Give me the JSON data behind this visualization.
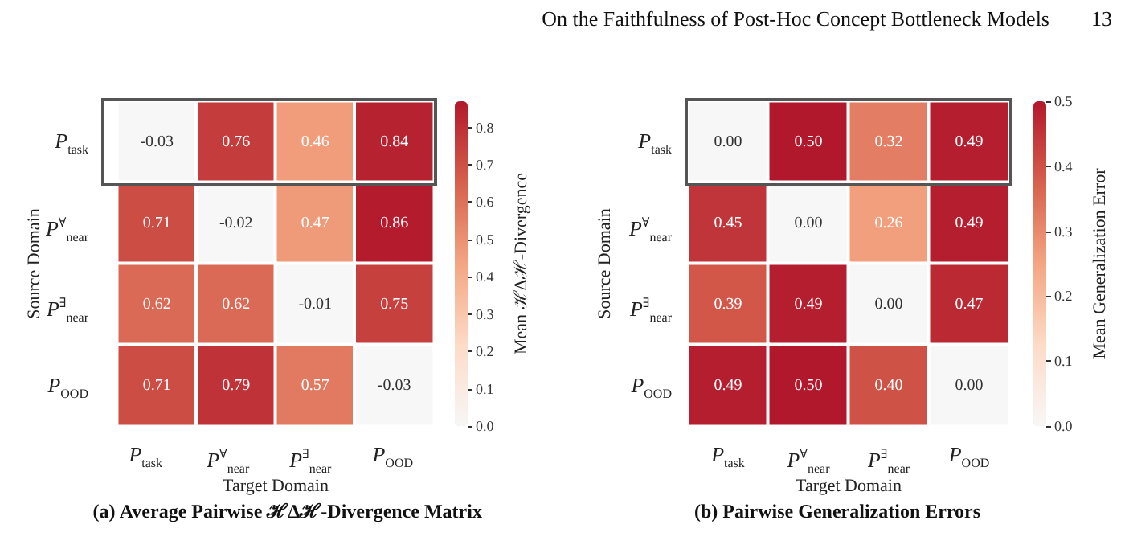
{
  "chart_data": [
    {
      "type": "heatmap",
      "title": "(a) Average Pairwise ℋΔℋ-Divergence Matrix",
      "xlabel": "Target Domain",
      "ylabel": "Source Domain",
      "clabel": "Mean ℋΔℋ-Divergence",
      "annotations": [
        "On the Faithfulness of Post-Hoc Concept Bottleneck Models",
        "13"
      ],
      "categories": [
        "P$_{task}$",
        "P$^{∀}$$_{near}$",
        "P$^{∃}$$_{near}$",
        "P$_{OOD}$"
      ],
      "y_categories": [
        "P$_{task}$",
        "P$^{∀}$$_{near}$",
        "P$^{∃}$$_{near}$",
        "P$_{OOD}$"
      ],
      "cells": [
        [
          -0.03,
          0.76,
          0.46,
          0.84
        ],
        [
          0.71,
          -0.02,
          0.47,
          0.86
        ],
        [
          0.62,
          0.62,
          -0.01,
          0.75
        ],
        [
          0.71,
          0.79,
          0.57,
          -0.03
        ]
      ],
      "cell_labels": [
        [
          "-0.03",
          "0.76",
          "0.46",
          "0.84"
        ],
        [
          "0.71",
          "-0.02",
          "0.47",
          "0.86"
        ],
        [
          "0.62",
          "0.62",
          "-0.01",
          "0.75"
        ],
        [
          "0.71",
          "0.79",
          "0.57",
          "-0.03"
        ]
      ],
      "clim": [
        0,
        0.87
      ],
      "cticks": [
        {
          "value": 0,
          "label": "0.0"
        },
        0.1,
        0.2,
        0.3,
        0.4,
        0.5,
        0.6,
        0.7,
        0.8
      ]
    },
    {
      "type": "heatmap",
      "title": "(b) Pairwise Generalization Errors",
      "xlabel": "Target Domain",
      "ylabel": "Source Domain",
      "clabel": "Mean Generalization Error",
      "categories": [
        "P$_{task}$",
        "P$^{∀}$$_{near}$",
        "P$^{∃}$$_{near}$",
        "P$_{OOD}$"
      ],
      "y_categories": [
        "P$_{task}$",
        "P$^{∀}$$_{near}$",
        "P$^{∃}$$_{near}$",
        "P$_{OOD}$"
      ],
      "cells": [
        [
          0,
          0.5,
          0.32,
          0.49
        ],
        [
          0.45,
          0,
          0.26,
          0.49
        ],
        [
          0.39,
          0.49,
          0,
          0.47
        ],
        [
          0.49,
          0.5,
          0.4,
          0
        ]
      ],
      "cell_labels": [
        [
          "0.00",
          "0.50",
          "0.32",
          "0.49"
        ],
        [
          "0.45",
          "0.00",
          "0.26",
          "0.49"
        ],
        [
          "0.39",
          "0.49",
          "0.00",
          "0.47"
        ],
        [
          "0.49",
          "0.50",
          "0.40",
          "0.00"
        ]
      ],
      "clim": [
        0,
        0.5
      ],
      "cticks": [
        {
          "value": 0,
          "label": "0.0"
        },
        {
          "value": 0.1,
          "label": "0.1"
        },
        {
          "value": 0.2,
          "label": "0.2"
        },
        {
          "value": 0.3,
          "label": "0.3"
        },
        {
          "value": 0.4,
          "label": "0.4"
        },
        {
          "value": 0.5,
          "label": "0.5"
        }
      ]
    }
  ]
}
